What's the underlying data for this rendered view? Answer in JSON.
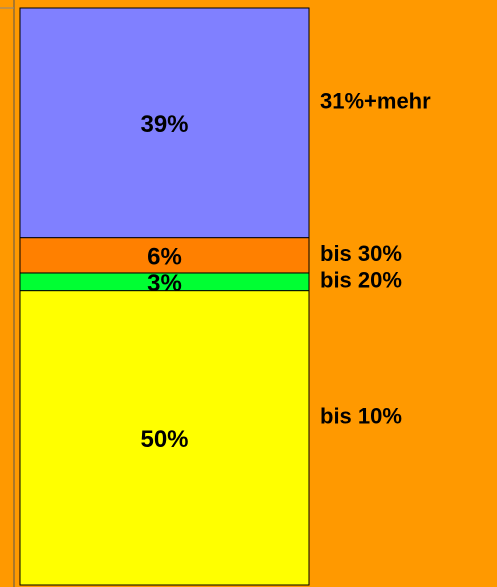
{
  "chart_data": {
    "type": "stacked_bar",
    "categories": [
      null
    ],
    "series": [
      {
        "name": "bis 10%",
        "color": "#ffff00",
        "values": [
          50
        ],
        "value_labels": [
          "50%"
        ]
      },
      {
        "name": "bis 20%",
        "color": "#00ff33",
        "values": [
          3
        ],
        "value_labels": [
          "3%"
        ]
      },
      {
        "name": "bis 30%",
        "color": "#ff8000",
        "values": [
          6
        ],
        "value_labels": [
          "6%"
        ]
      },
      {
        "name": "31%+mehr",
        "color": "#8080ff",
        "values": [
          39
        ],
        "value_labels": [
          "39%"
        ]
      }
    ],
    "background": "#ff9900"
  }
}
